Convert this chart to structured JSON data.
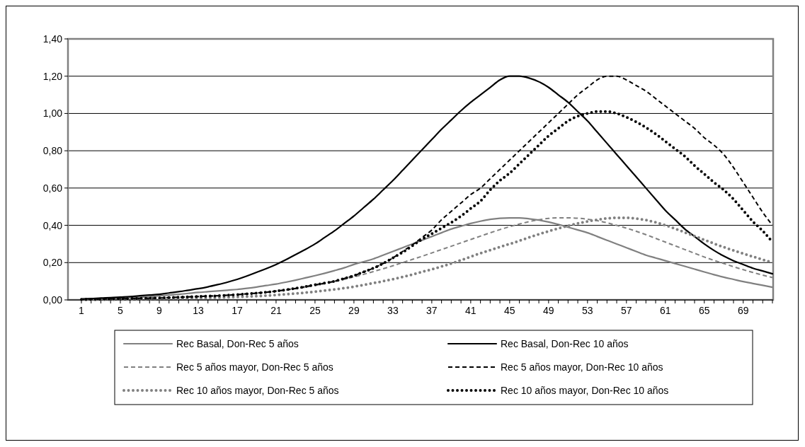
{
  "chart_data": {
    "type": "line",
    "categories": [
      "1",
      null,
      null,
      null,
      "5",
      null,
      null,
      null,
      "9",
      null,
      null,
      null,
      "13",
      null,
      null,
      null,
      "17",
      null,
      null,
      null,
      "21",
      null,
      null,
      null,
      "25",
      null,
      null,
      null,
      "29",
      null,
      null,
      null,
      "33",
      null,
      null,
      null,
      "37",
      null,
      null,
      null,
      "41",
      null,
      null,
      null,
      "45",
      null,
      null,
      null,
      "49",
      null,
      null,
      null,
      "53",
      null,
      null,
      null,
      "57",
      null,
      null,
      null,
      "61",
      null,
      null,
      null,
      "65",
      null,
      null,
      null,
      "69",
      null,
      null,
      null
    ],
    "ylim": [
      0,
      1.4
    ],
    "yticks": [
      {
        "value": 0,
        "label": "0,00"
      },
      {
        "value": 0.2,
        "label": "0,20"
      },
      {
        "value": 0.4,
        "label": "0,40"
      },
      {
        "value": 0.6,
        "label": "0,60"
      },
      {
        "value": 0.8,
        "label": "0,80"
      },
      {
        "value": 1,
        "label": "1,00"
      },
      {
        "value": 1.2,
        "label": "1,20"
      },
      {
        "value": 1.4,
        "label": "1,40"
      }
    ],
    "grid": "y",
    "legend": "bottom",
    "marker": "none",
    "series": [
      {
        "name": "Rec Basal, Don-Rec 5 años",
        "color": "#808080",
        "line_style": "solid",
        "values": [
          0.002,
          0.003,
          0.005,
          0.007,
          0.009,
          0.011,
          0.014,
          0.017,
          0.022,
          0.026,
          0.03,
          0.035,
          0.04,
          0.044,
          0.048,
          0.052,
          0.056,
          0.062,
          0.069,
          0.077,
          0.085,
          0.095,
          0.106,
          0.118,
          0.13,
          0.143,
          0.157,
          0.172,
          0.19,
          0.205,
          0.22,
          0.24,
          0.26,
          0.28,
          0.3,
          0.32,
          0.34,
          0.36,
          0.38,
          0.395,
          0.41,
          0.422,
          0.432,
          0.438,
          0.44,
          0.44,
          0.435,
          0.428,
          0.418,
          0.405,
          0.39,
          0.375,
          0.36,
          0.34,
          0.32,
          0.3,
          0.28,
          0.26,
          0.24,
          0.225,
          0.21,
          0.195,
          0.18,
          0.165,
          0.15,
          0.135,
          0.122,
          0.11,
          0.098,
          0.088,
          0.078,
          0.068
        ]
      },
      {
        "name": "Rec Basal, Don-Rec 10 años",
        "color": "#000000",
        "line_style": "solid",
        "values": [
          0.005,
          0.007,
          0.01,
          0.012,
          0.015,
          0.018,
          0.022,
          0.026,
          0.03,
          0.037,
          0.044,
          0.052,
          0.06,
          0.07,
          0.082,
          0.095,
          0.11,
          0.128,
          0.148,
          0.168,
          0.19,
          0.215,
          0.243,
          0.27,
          0.3,
          0.335,
          0.37,
          0.41,
          0.45,
          0.495,
          0.54,
          0.59,
          0.64,
          0.695,
          0.75,
          0.805,
          0.86,
          0.915,
          0.965,
          1.015,
          1.06,
          1.1,
          1.14,
          1.18,
          1.2,
          1.2,
          1.19,
          1.17,
          1.14,
          1.1,
          1.06,
          1.01,
          0.96,
          0.9,
          0.84,
          0.78,
          0.72,
          0.66,
          0.6,
          0.54,
          0.48,
          0.43,
          0.38,
          0.34,
          0.3,
          0.265,
          0.235,
          0.21,
          0.19,
          0.17,
          0.155,
          0.14
        ]
      },
      {
        "name": "Rec 5 años mayor, Don-Rec 5 años",
        "color": "#808080",
        "line_style": "dashed",
        "values": [
          0.001,
          0.002,
          0.003,
          0.004,
          0.005,
          0.006,
          0.007,
          0.008,
          0.01,
          0.012,
          0.014,
          0.016,
          0.018,
          0.02,
          0.023,
          0.026,
          0.029,
          0.033,
          0.037,
          0.042,
          0.047,
          0.053,
          0.06,
          0.068,
          0.077,
          0.087,
          0.098,
          0.11,
          0.123,
          0.137,
          0.152,
          0.167,
          0.183,
          0.2,
          0.217,
          0.234,
          0.252,
          0.27,
          0.288,
          0.306,
          0.324,
          0.342,
          0.36,
          0.377,
          0.393,
          0.407,
          0.42,
          0.43,
          0.437,
          0.44,
          0.44,
          0.438,
          0.433,
          0.425,
          0.414,
          0.4,
          0.385,
          0.368,
          0.35,
          0.33,
          0.31,
          0.29,
          0.27,
          0.25,
          0.23,
          0.212,
          0.195,
          0.178,
          0.162,
          0.147,
          0.133,
          0.12
        ]
      },
      {
        "name": "Rec 5 años mayor, Don-Rec 10 años",
        "color": "#000000",
        "line_style": "dashed",
        "values": [
          0.002,
          0.003,
          0.004,
          0.005,
          0.006,
          0.007,
          0.008,
          0.009,
          0.01,
          0.012,
          0.014,
          0.016,
          0.018,
          0.02,
          0.022,
          0.025,
          0.028,
          0.032,
          0.036,
          0.041,
          0.047,
          0.054,
          0.062,
          0.071,
          0.081,
          0.09,
          0.1,
          0.115,
          0.13,
          0.15,
          0.17,
          0.195,
          0.225,
          0.26,
          0.295,
          0.335,
          0.375,
          0.43,
          0.475,
          0.52,
          0.565,
          0.6,
          0.65,
          0.7,
          0.75,
          0.8,
          0.85,
          0.9,
          0.95,
          1.0,
          1.05,
          1.1,
          1.14,
          1.18,
          1.2,
          1.2,
          1.18,
          1.15,
          1.12,
          1.08,
          1.04,
          1.0,
          0.96,
          0.92,
          0.87,
          0.83,
          0.78,
          0.71,
          0.63,
          0.55,
          0.47,
          0.4
        ]
      },
      {
        "name": "Rec 10 años mayor, Don-Rec 5 años",
        "color": "#808080",
        "line_style": "dotted",
        "values": [
          0.001,
          0.001,
          0.002,
          0.002,
          0.003,
          0.003,
          0.004,
          0.005,
          0.006,
          0.007,
          0.008,
          0.009,
          0.01,
          0.011,
          0.012,
          0.014,
          0.016,
          0.018,
          0.02,
          0.023,
          0.026,
          0.03,
          0.034,
          0.039,
          0.044,
          0.05,
          0.056,
          0.063,
          0.071,
          0.08,
          0.09,
          0.1,
          0.111,
          0.123,
          0.136,
          0.15,
          0.164,
          0.179,
          0.195,
          0.213,
          0.232,
          0.25,
          0.267,
          0.284,
          0.3,
          0.317,
          0.335,
          0.352,
          0.368,
          0.383,
          0.397,
          0.41,
          0.421,
          0.43,
          0.437,
          0.44,
          0.44,
          0.436,
          0.428,
          0.416,
          0.4,
          0.382,
          0.362,
          0.342,
          0.322,
          0.302,
          0.283,
          0.265,
          0.248,
          0.232,
          0.216,
          0.2
        ]
      },
      {
        "name": "Rec 10 años mayor, Don-Rec 10 años",
        "color": "#000000",
        "line_style": "dotted",
        "values": [
          0.002,
          0.003,
          0.004,
          0.005,
          0.006,
          0.007,
          0.008,
          0.009,
          0.01,
          0.012,
          0.014,
          0.016,
          0.018,
          0.02,
          0.022,
          0.025,
          0.028,
          0.032,
          0.036,
          0.041,
          0.047,
          0.054,
          0.062,
          0.071,
          0.081,
          0.09,
          0.1,
          0.115,
          0.13,
          0.15,
          0.17,
          0.195,
          0.225,
          0.255,
          0.29,
          0.325,
          0.355,
          0.385,
          0.415,
          0.45,
          0.49,
          0.53,
          0.59,
          0.64,
          0.68,
          0.73,
          0.78,
          0.83,
          0.88,
          0.92,
          0.96,
          0.985,
          1.0,
          1.01,
          1.01,
          1.0,
          0.98,
          0.955,
          0.925,
          0.89,
          0.85,
          0.81,
          0.77,
          0.72,
          0.675,
          0.63,
          0.59,
          0.54,
          0.48,
          0.42,
          0.37,
          0.31
        ]
      }
    ]
  }
}
